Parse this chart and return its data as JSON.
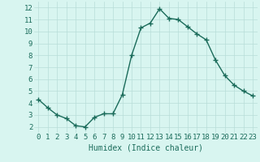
{
  "x": [
    0,
    1,
    2,
    3,
    4,
    5,
    6,
    7,
    8,
    9,
    10,
    11,
    12,
    13,
    14,
    15,
    16,
    17,
    18,
    19,
    20,
    21,
    22,
    23
  ],
  "y": [
    4.3,
    3.6,
    3.0,
    2.7,
    2.1,
    2.0,
    2.8,
    3.1,
    3.1,
    4.7,
    8.0,
    10.3,
    10.7,
    11.9,
    11.1,
    11.0,
    10.4,
    9.8,
    9.3,
    7.6,
    6.3,
    5.5,
    5.0,
    4.6
  ],
  "line_color": "#1a6b5a",
  "marker": "+",
  "marker_size": 4,
  "marker_linewidth": 1.0,
  "bg_color": "#d8f5f0",
  "grid_color": "#b8ddd8",
  "xlabel": "Humidex (Indice chaleur)",
  "xlim": [
    -0.5,
    23.5
  ],
  "ylim": [
    1.5,
    12.5
  ],
  "yticks": [
    2,
    3,
    4,
    5,
    6,
    7,
    8,
    9,
    10,
    11,
    12
  ],
  "xticks": [
    0,
    1,
    2,
    3,
    4,
    5,
    6,
    7,
    8,
    9,
    10,
    11,
    12,
    13,
    14,
    15,
    16,
    17,
    18,
    19,
    20,
    21,
    22,
    23
  ],
  "label_color": "#1a6b5a",
  "tick_color": "#1a6b5a",
  "xlabel_fontsize": 7,
  "tick_fontsize": 6.5,
  "line_width": 1.0
}
